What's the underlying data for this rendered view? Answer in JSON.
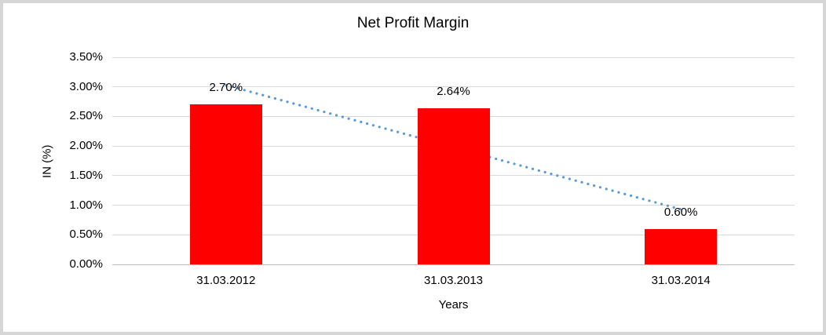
{
  "window": {
    "background": "#FFFFFF",
    "frame_border_color": "#D6D6D6"
  },
  "chart_data": {
    "type": "bar",
    "title": "Net Profit Margin",
    "categories": [
      "31.03.2012",
      "31.03.2013",
      "31.03.2014"
    ],
    "values": [
      2.7,
      2.64,
      0.6
    ],
    "data_labels": [
      "2.70%",
      "2.64%",
      "0.60%"
    ],
    "xlabel": "Years",
    "ylabel": "IN (%)",
    "ylim": [
      0,
      3.5
    ],
    "ytick_step": 0.5,
    "ytick_labels": [
      "3.50%",
      "3.00%",
      "2.50%",
      "2.00%",
      "1.50%",
      "1.00%",
      "0.50%",
      "0.00%"
    ],
    "grid": true,
    "legend": "none",
    "bar_color": "#FF0000",
    "gridline_color": "#D9D9D9",
    "axis_line_color": "#BFBFBF",
    "text_color": "#000000",
    "trendline": {
      "type": "linear",
      "style": "dotted",
      "color": "#5B9BD5",
      "start_value": 3.03,
      "end_value": 0.93
    }
  }
}
